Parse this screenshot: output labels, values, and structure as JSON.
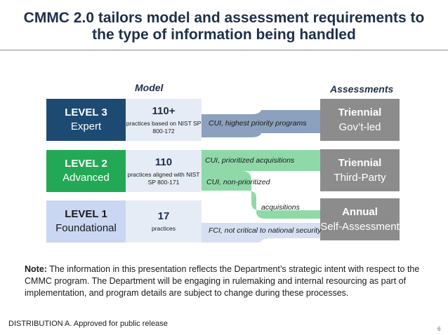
{
  "title_line1": "CMMC 2.0 tailors model and assessment requirements to",
  "title_line2": "the type of information being handled",
  "columns": {
    "model": "Model",
    "assessments": "Assessments"
  },
  "levels": [
    {
      "level": "LEVEL 3",
      "name": "Expert",
      "count": "110+",
      "practices": "practices based on NIST SP 800-172",
      "color": "#1d4a72"
    },
    {
      "level": "LEVEL 2",
      "name": "Advanced",
      "count": "110",
      "practices": "practices aligned with NIST SP 800-171",
      "color": "#23a955"
    },
    {
      "level": "LEVEL 1",
      "name": "Foundational",
      "count": "17",
      "practices": "practices",
      "color": "#c9d7f2"
    }
  ],
  "assessments": [
    {
      "line1": "Triennial",
      "line2": "Gov’t-led"
    },
    {
      "line1": "Triennial",
      "line2": "Third-Party"
    },
    {
      "line1": "Annual",
      "line2": "Self-Assessment"
    }
  ],
  "flows": {
    "cui_highest": "CUI, highest priority programs",
    "cui_prioritized": "CUI, prioritized acquisitions",
    "cui_non_prioritized": "CUI, non-prioritized",
    "acquisitions": "acquisitions",
    "fci": "FCI, not critical to national security"
  },
  "colors": {
    "flow_blue": "#8ba1bd",
    "flow_green": "#8fd9a8",
    "flow_light": "#d6e0f2"
  },
  "note": {
    "label": "Note:",
    "text": " The information in this presentation reflects the Department’s strategic intent with respect to the CMMC program. The Department will be engaging in rulemaking and internal resourcing as part of implementation, and program details are subject to change during these processes."
  },
  "footer": "DISTRIBUTION A.  Approved for public release",
  "page_number": "6"
}
